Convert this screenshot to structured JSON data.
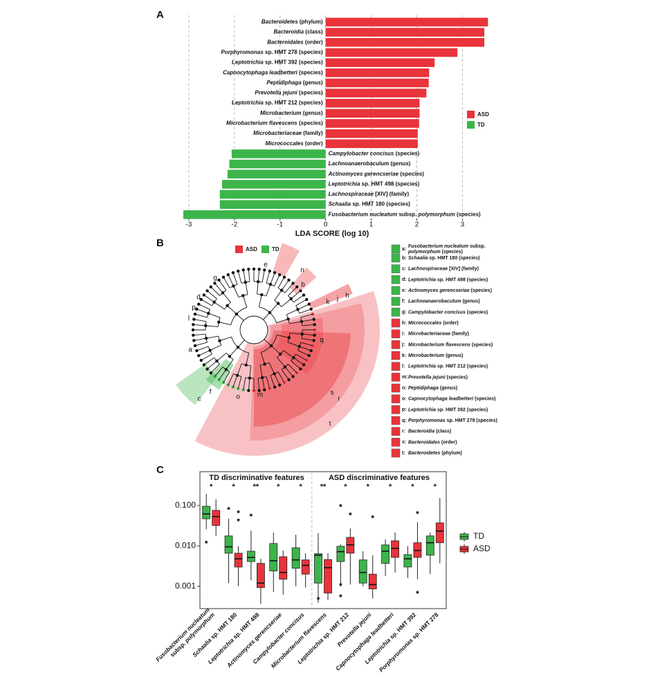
{
  "chart_data": [
    {
      "type": "bar",
      "orientation": "horizontal",
      "panel": "A",
      "categories": [
        "Bacteroidetes (phylum)",
        "Bacteroidia (class)",
        "Bacteroidales (order)",
        "Porphyromonas sp. HMT 278 (species)",
        "Leptotrichia sp. HMT 392 (species)",
        "Capnocytophaga leadbetteri (species)",
        "Peptidiphaga (genus)",
        "Prevotella jejuni (species)",
        "Leptotrichia sp. HMT 212 (species)",
        "Microbacterium (genus)",
        "Microbacterium flavescens (species)",
        "Microbacteriaceae (family)",
        "Micrococcales (order)",
        "Campylobacter concisus (species)",
        "Lachnoanaerobaculum (genus)",
        "Actinomyces gerencseriae (species)",
        "Leptotrichia sp. HMT 498 (species)",
        "Lachnospiraceae [XIV] (family)",
        "Schaalia sp. HMT 180 (species)",
        "Fusobacterium nucleatum subsp. polymorphum (species)"
      ],
      "series": [
        {
          "name": "ASD",
          "color": "#e8343a",
          "values": [
            3.56,
            3.48,
            3.48,
            2.89,
            2.39,
            2.27,
            2.26,
            2.21,
            2.06,
            2.06,
            2.05,
            2.02,
            2.02,
            null,
            null,
            null,
            null,
            null,
            null,
            null
          ]
        },
        {
          "name": "TD",
          "color": "#3cb54a",
          "values": [
            null,
            null,
            null,
            null,
            null,
            null,
            null,
            null,
            null,
            null,
            null,
            null,
            null,
            -2.06,
            -2.11,
            -2.15,
            -2.27,
            -2.32,
            -2.32,
            -3.12
          ]
        }
      ],
      "xlabel": "LDA SCORE (log 10)",
      "xlim": [
        -3.15,
        3.6
      ],
      "xticks": [
        -3,
        -2,
        -1,
        0,
        1,
        2,
        3
      ],
      "grid": true,
      "legend_position": "right"
    },
    {
      "type": "box",
      "panel": "C",
      "categories": [
        [
          "Fusobacterium nucleatum",
          "subsp. polymorphum"
        ],
        [
          "Schaalia sp. HMT 180"
        ],
        [
          "Leptotrichia sp. HMT 498"
        ],
        [
          "Actinomyces gerencseriae"
        ],
        [
          "Campylobacter concisus"
        ],
        [
          "Microbacterium flavescens"
        ],
        [
          "Leptotrichia sp. HMT 212"
        ],
        [
          "Prevotella jejuni"
        ],
        [
          "Capnocytophaga leadbetteri"
        ],
        [
          "Leptotrichia sp. HMT 392"
        ],
        [
          "Porphyromonas sp. HMT 278"
        ]
      ],
      "series": [
        {
          "name": "TD",
          "color": "#3cb54a",
          "values": [
            [
              0.026,
              0.047,
              0.062,
              0.096,
              0.195
            ],
            [
              0.0012,
              0.0066,
              0.0095,
              0.0177,
              0.047
            ],
            [
              0.0014,
              0.0041,
              0.0052,
              0.0074,
              0.024
            ],
            [
              0.00073,
              0.0024,
              0.0043,
              0.0115,
              0.0215
            ],
            [
              0.001,
              0.0028,
              0.0045,
              0.009,
              0.019
            ],
            [
              0.00039,
              0.0012,
              0.0059,
              0.0064,
              0.0207
            ],
            [
              0.001,
              0.0041,
              0.0072,
              0.0098,
              0.011
            ],
            [
              0.001,
              0.0012,
              0.0022,
              0.0045,
              0.0074
            ],
            [
              0.0018,
              0.0037,
              0.0074,
              0.0106,
              0.0145
            ],
            [
              0.0016,
              0.003,
              0.0048,
              0.0061,
              0.0098
            ],
            [
              0.002,
              0.0059,
              0.012,
              0.0177,
              0.0215
            ]
          ],
          "outliers": [
            [
              0.0124
            ],
            [
              0.085
            ],
            [
              0.058
            ],
            [],
            [],
            [
              0.0005
            ],
            [
              0.1,
              0.0011,
              0.00058
            ],
            [],
            [],
            [],
            []
          ]
        },
        {
          "name": "ASD",
          "color": "#e8343a",
          "values": [
            [
              0.0177,
              0.032,
              0.053,
              0.076,
              0.143
            ],
            [
              0.001,
              0.003,
              0.0048,
              0.0066,
              0.0098
            ],
            [
              0.00037,
              0.00093,
              0.0012,
              0.0037,
              0.0048
            ],
            [
              0.00062,
              0.0015,
              0.0022,
              0.0054,
              0.0077
            ],
            [
              0.00093,
              0.002,
              0.0033,
              0.0045,
              0.0066
            ],
            [
              0.00046,
              0.00068,
              0.0029,
              0.0046,
              0.0066
            ],
            [
              0.0011,
              0.0066,
              0.0106,
              0.0163,
              0.027
            ],
            [
              0.0005,
              0.00086,
              0.0011,
              0.002,
              0.0059
            ],
            [
              0.0022,
              0.0052,
              0.0087,
              0.0134,
              0.0215
            ],
            [
              0.0015,
              0.0052,
              0.0077,
              0.012,
              0.039
            ],
            [
              0.0037,
              0.012,
              0.0233,
              0.0373,
              0.154
            ]
          ],
          "outliers": [
            [],
            [
              0.07,
              0.044
            ],
            [],
            [],
            [],
            [],
            [
              0.062
            ],
            [
              0.053
            ],
            [],
            [
              0.067,
              0.00071
            ],
            []
          ]
        }
      ],
      "significance": [
        "*",
        "*",
        "**",
        "*",
        "*",
        "**",
        "*",
        "*",
        "*",
        "*",
        "*"
      ],
      "group_labels": [
        "TD discriminative features",
        "ASD discriminative features"
      ],
      "yscale": "log",
      "ylim": [
        0.00028,
        0.69
      ],
      "yticks": [
        {
          "value": 0.001,
          "label": "0.001"
        },
        {
          "value": 0.01,
          "label": "0.010"
        },
        {
          "value": 0.1,
          "label": "0.100"
        }
      ],
      "legend_position": "right"
    }
  ],
  "cladogram": {
    "panel": "B",
    "legend": [
      {
        "name": "ASD",
        "color": "#e8343a"
      },
      {
        "name": "TD",
        "color": "#3cb54a"
      }
    ],
    "labels": [
      "n",
      "b",
      "k",
      "j",
      "h",
      "e",
      "g",
      "d",
      "p",
      "l",
      "a",
      "q",
      "s",
      "r",
      "t",
      "o",
      "m",
      "f",
      "c"
    ],
    "items": [
      {
        "key": "a:",
        "name": [
          "Fusobacterium nucleatum subsp.",
          "polymorphum (species)"
        ],
        "color": "#3cb54a"
      },
      {
        "key": "b:",
        "name": [
          "Schaalia sp. HMT 180 (species)"
        ],
        "color": "#3cb54a"
      },
      {
        "key": "c:",
        "name": [
          "Lachnospiraceae [XIV] (family)"
        ],
        "color": "#3cb54a"
      },
      {
        "key": "d:",
        "name": [
          "Leptotrichia sp. HMT 498 (species)"
        ],
        "color": "#3cb54a"
      },
      {
        "key": "e:",
        "name": [
          "Actinomyces gerencseriae (species)"
        ],
        "color": "#3cb54a"
      },
      {
        "key": "f:",
        "name": [
          "Lachnoanaerobaculum (genus)"
        ],
        "color": "#3cb54a"
      },
      {
        "key": "g:",
        "name": [
          "Campylobacter concisus (species)"
        ],
        "color": "#3cb54a"
      },
      {
        "key": "h:",
        "name": [
          "Micrococcales (order)"
        ],
        "color": "#e8343a"
      },
      {
        "key": "i:",
        "name": [
          "Microbacteriaceae (family)"
        ],
        "color": "#e8343a"
      },
      {
        "key": "j:",
        "name": [
          "Microbacterium flavescens (species)"
        ],
        "color": "#e8343a"
      },
      {
        "key": "k:",
        "name": [
          "Microbacterium (genus)"
        ],
        "color": "#e8343a"
      },
      {
        "key": "l:",
        "name": [
          "Leptotrichia sp. HMT 212 (species)"
        ],
        "color": "#e8343a"
      },
      {
        "key": "m:",
        "name": [
          "Prevotella jejuni (species)"
        ],
        "color": "#e8343a"
      },
      {
        "key": "n:",
        "name": [
          "Peptidiphaga (genus)"
        ],
        "color": "#e8343a"
      },
      {
        "key": "o:",
        "name": [
          "Capnocytophaga leadbetteri (species)"
        ],
        "color": "#e8343a"
      },
      {
        "key": "p:",
        "name": [
          "Leptotrichia sp. HMT 392 (species)"
        ],
        "color": "#e8343a"
      },
      {
        "key": "q:",
        "name": [
          "Porphyromonas sp. HMT 278 (species)"
        ],
        "color": "#e8343a"
      },
      {
        "key": "r:",
        "name": [
          "Bacteroidia (class)"
        ],
        "color": "#e8343a"
      },
      {
        "key": "s:",
        "name": [
          "Bacteroidales (order)"
        ],
        "color": "#e8343a"
      },
      {
        "key": "t:",
        "name": [
          "Bacteroidetes (phylum)"
        ],
        "color": "#e8343a"
      }
    ]
  }
}
